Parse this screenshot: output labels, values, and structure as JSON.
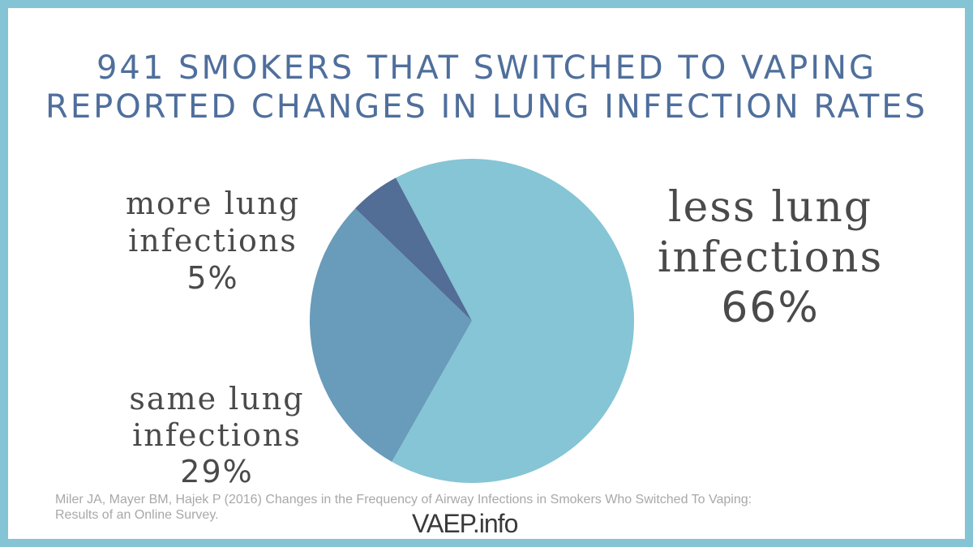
{
  "chart_data": {
    "type": "pie",
    "title": "941 SMOKERS THAT SWITCHED TO VAPING",
    "subtitle": "REPORTED CHANGES IN LUNG INFECTION RATES",
    "slices": [
      {
        "line1": "less lung",
        "line2": "infections",
        "pct_label": "66%",
        "value": 66,
        "color": "#85c5d5"
      },
      {
        "line1": "same lung",
        "line2": "infections",
        "pct_label": "29%",
        "value": 29,
        "color": "#699bba"
      },
      {
        "line1": "more lung",
        "line2": "infections",
        "pct_label": "5%",
        "value": 5,
        "color": "#526d96"
      }
    ]
  },
  "citation": {
    "line1": "Miler JA, Mayer BM, Hajek P (2016) Changes in the Frequency of Airway Infections in Smokers Who Switched To Vaping:",
    "line2": "Results of an Online Survey."
  },
  "logo": {
    "text": "VAEP.info"
  },
  "colors": {
    "frame": "#85c4d4",
    "title": "#4f6f9c",
    "label": "#4a4a4a"
  }
}
